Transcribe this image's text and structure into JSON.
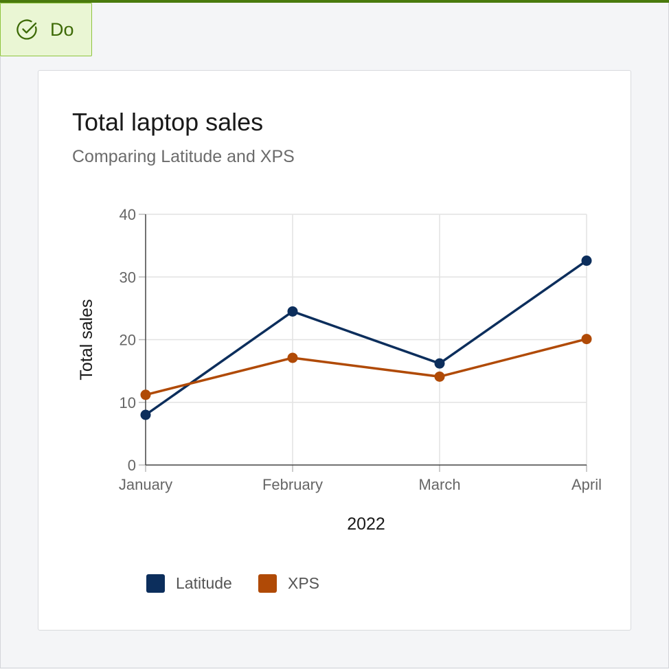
{
  "badge": {
    "label": "Do",
    "icon": "check-circle-icon",
    "color": "#3d6a06"
  },
  "chart_data": {
    "type": "line",
    "title": "Total laptop sales",
    "subtitle": "Comparing Latitude and XPS",
    "categories": [
      "January",
      "February",
      "March",
      "April"
    ],
    "xlabel": "2022",
    "ylabel": "Total sales",
    "ylim": [
      0,
      40
    ],
    "yticks": [
      "0",
      "10",
      "20",
      "30",
      "40"
    ],
    "grid": true,
    "legend_position": "bottom-left",
    "series": [
      {
        "name": "Latitude",
        "values": [
          8,
          24.5,
          16.2,
          32.6
        ],
        "color": "#0c2e5c"
      },
      {
        "name": "XPS",
        "values": [
          11.2,
          17.1,
          14.1,
          20.1
        ],
        "color": "#b04a06"
      }
    ]
  }
}
